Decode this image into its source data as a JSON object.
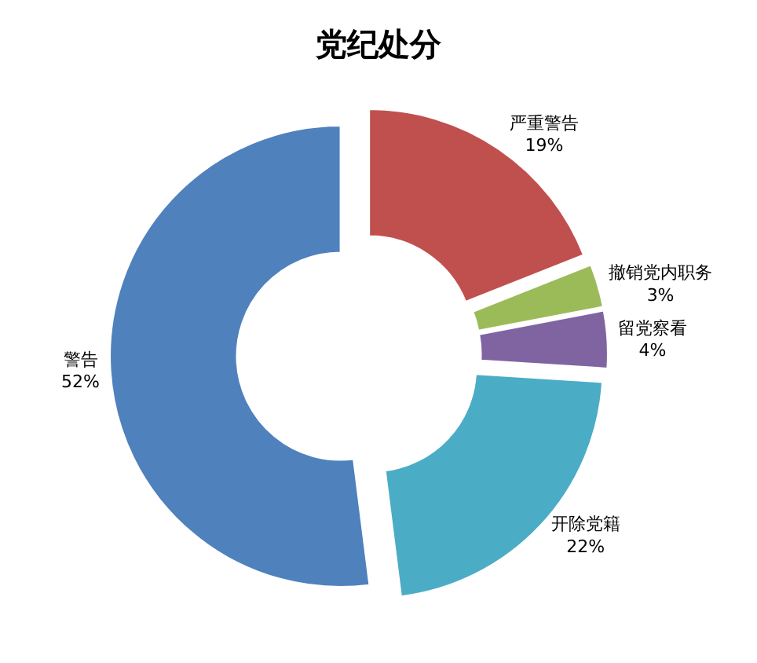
{
  "chart_data": {
    "type": "donut",
    "title": "党纪处分",
    "categories": [
      "严重警告",
      "撤销党内职务",
      "留党察看",
      "开除党籍",
      "警告"
    ],
    "values": [
      19,
      3,
      4,
      22,
      52
    ],
    "value_labels": [
      "19%",
      "3%",
      "4%",
      "22%",
      "52%"
    ],
    "colors": [
      "#c0504d",
      "#9bbb59",
      "#8064a2",
      "#4bacc6",
      "#4f81bd"
    ],
    "legend": false
  }
}
